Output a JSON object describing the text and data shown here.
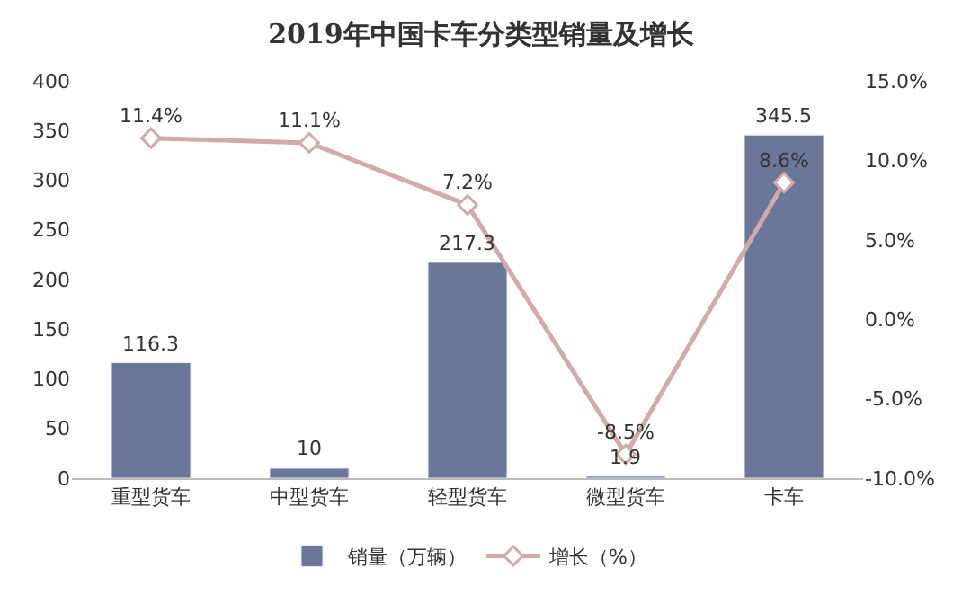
{
  "chart_data": {
    "type": "bar",
    "title": "2019年中国卡车分类型销量及增长",
    "categories": [
      "重型货车",
      "中型货车",
      "轻型货车",
      "微型货车",
      "卡车"
    ],
    "series": [
      {
        "name": "销量（万辆）",
        "color": "#6b7799",
        "values": [
          116.3,
          10,
          217.3,
          1.9,
          345.5
        ],
        "value_labels": [
          "116.3",
          "10",
          "217.3",
          "1.9",
          "345.5"
        ]
      },
      {
        "name": "增长（%）",
        "type": "line",
        "axis": "y2",
        "color": "#d4a9a9",
        "marker": "diamond",
        "values": [
          11.4,
          11.1,
          7.2,
          -8.5,
          8.6
        ],
        "value_labels": [
          "11.4%",
          "11.1%",
          "7.2%",
          "-8.5%",
          "8.6%"
        ]
      }
    ],
    "ylim": [
      0,
      400
    ],
    "yticks": [
      0,
      50,
      100,
      150,
      200,
      250,
      300,
      350,
      400
    ],
    "y2lim": [
      -10,
      15
    ],
    "y2ticks": [
      {
        "value": -10,
        "label": "-10.0%"
      },
      {
        "value": -5,
        "label": "-5.0%"
      },
      {
        "value": 0,
        "label": "0.0%"
      },
      {
        "value": 5,
        "label": "5.0%"
      },
      {
        "value": 10,
        "label": "10.0%"
      },
      {
        "value": 15,
        "label": "15.0%"
      }
    ],
    "legend": "bottom"
  }
}
